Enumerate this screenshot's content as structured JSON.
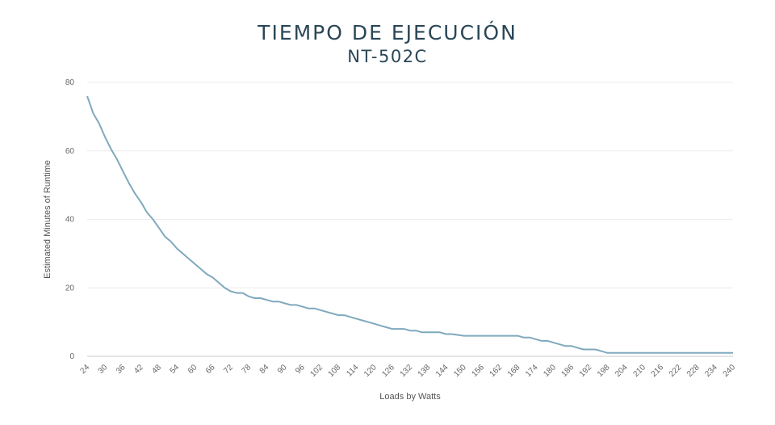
{
  "chart_data": {
    "type": "line",
    "title": "TIEMPO DE EJECUCIÓN",
    "subtitle": "NT-502C",
    "xlabel": "Loads by Watts",
    "ylabel": "Estimated Minutes of Runtime",
    "ylim": [
      0,
      80
    ],
    "yticks": [
      0,
      20,
      40,
      60,
      80
    ],
    "xlim": [
      24,
      240
    ],
    "xticks": [
      24,
      30,
      36,
      42,
      48,
      54,
      60,
      66,
      72,
      78,
      84,
      90,
      96,
      102,
      108,
      114,
      120,
      126,
      132,
      138,
      144,
      150,
      156,
      162,
      168,
      174,
      180,
      186,
      192,
      198,
      204,
      210,
      216,
      222,
      228,
      234,
      240
    ],
    "grid": "horizontal",
    "legend": "none",
    "line_color": "#7fa9bd",
    "series": [
      {
        "x": [
          24,
          26,
          28,
          30,
          32,
          34,
          36,
          38,
          40,
          42,
          44,
          46,
          48,
          50,
          52,
          54,
          56,
          58,
          60,
          62,
          64,
          66,
          68,
          70,
          72,
          74,
          76,
          78,
          80,
          82,
          84,
          86,
          88,
          90,
          92,
          94,
          96,
          98,
          100,
          102,
          104,
          106,
          108,
          110,
          112,
          114,
          116,
          118,
          120,
          122,
          124,
          126,
          128,
          130,
          132,
          134,
          136,
          138,
          140,
          142,
          144,
          146,
          150,
          156,
          162,
          168,
          170,
          172,
          174,
          176,
          178,
          180,
          182,
          184,
          186,
          188,
          190,
          192,
          194,
          196,
          198,
          204,
          210,
          216,
          222,
          228,
          234,
          240
        ],
        "values": [
          76,
          71,
          68,
          64,
          60.5,
          57.5,
          54,
          50.5,
          47.5,
          45,
          42,
          40,
          37.5,
          35,
          33.5,
          31.5,
          30,
          28.5,
          27,
          25.5,
          24,
          23,
          21.5,
          20,
          19,
          18.5,
          18.5,
          17.5,
          17,
          17,
          16.5,
          16,
          16,
          15.5,
          15,
          15,
          14.5,
          14,
          14,
          13.5,
          13,
          12.5,
          12,
          12,
          11.5,
          11,
          10.5,
          10,
          9.5,
          9,
          8.5,
          8,
          8,
          8,
          7.5,
          7.5,
          7,
          7,
          7,
          7,
          6.5,
          6.5,
          6,
          6,
          6,
          6,
          5.5,
          5.5,
          5,
          4.5,
          4.5,
          4,
          3.5,
          3,
          3,
          2.5,
          2,
          2,
          2,
          1.5,
          1,
          1,
          1,
          1,
          1,
          1,
          1,
          1
        ]
      }
    ]
  }
}
